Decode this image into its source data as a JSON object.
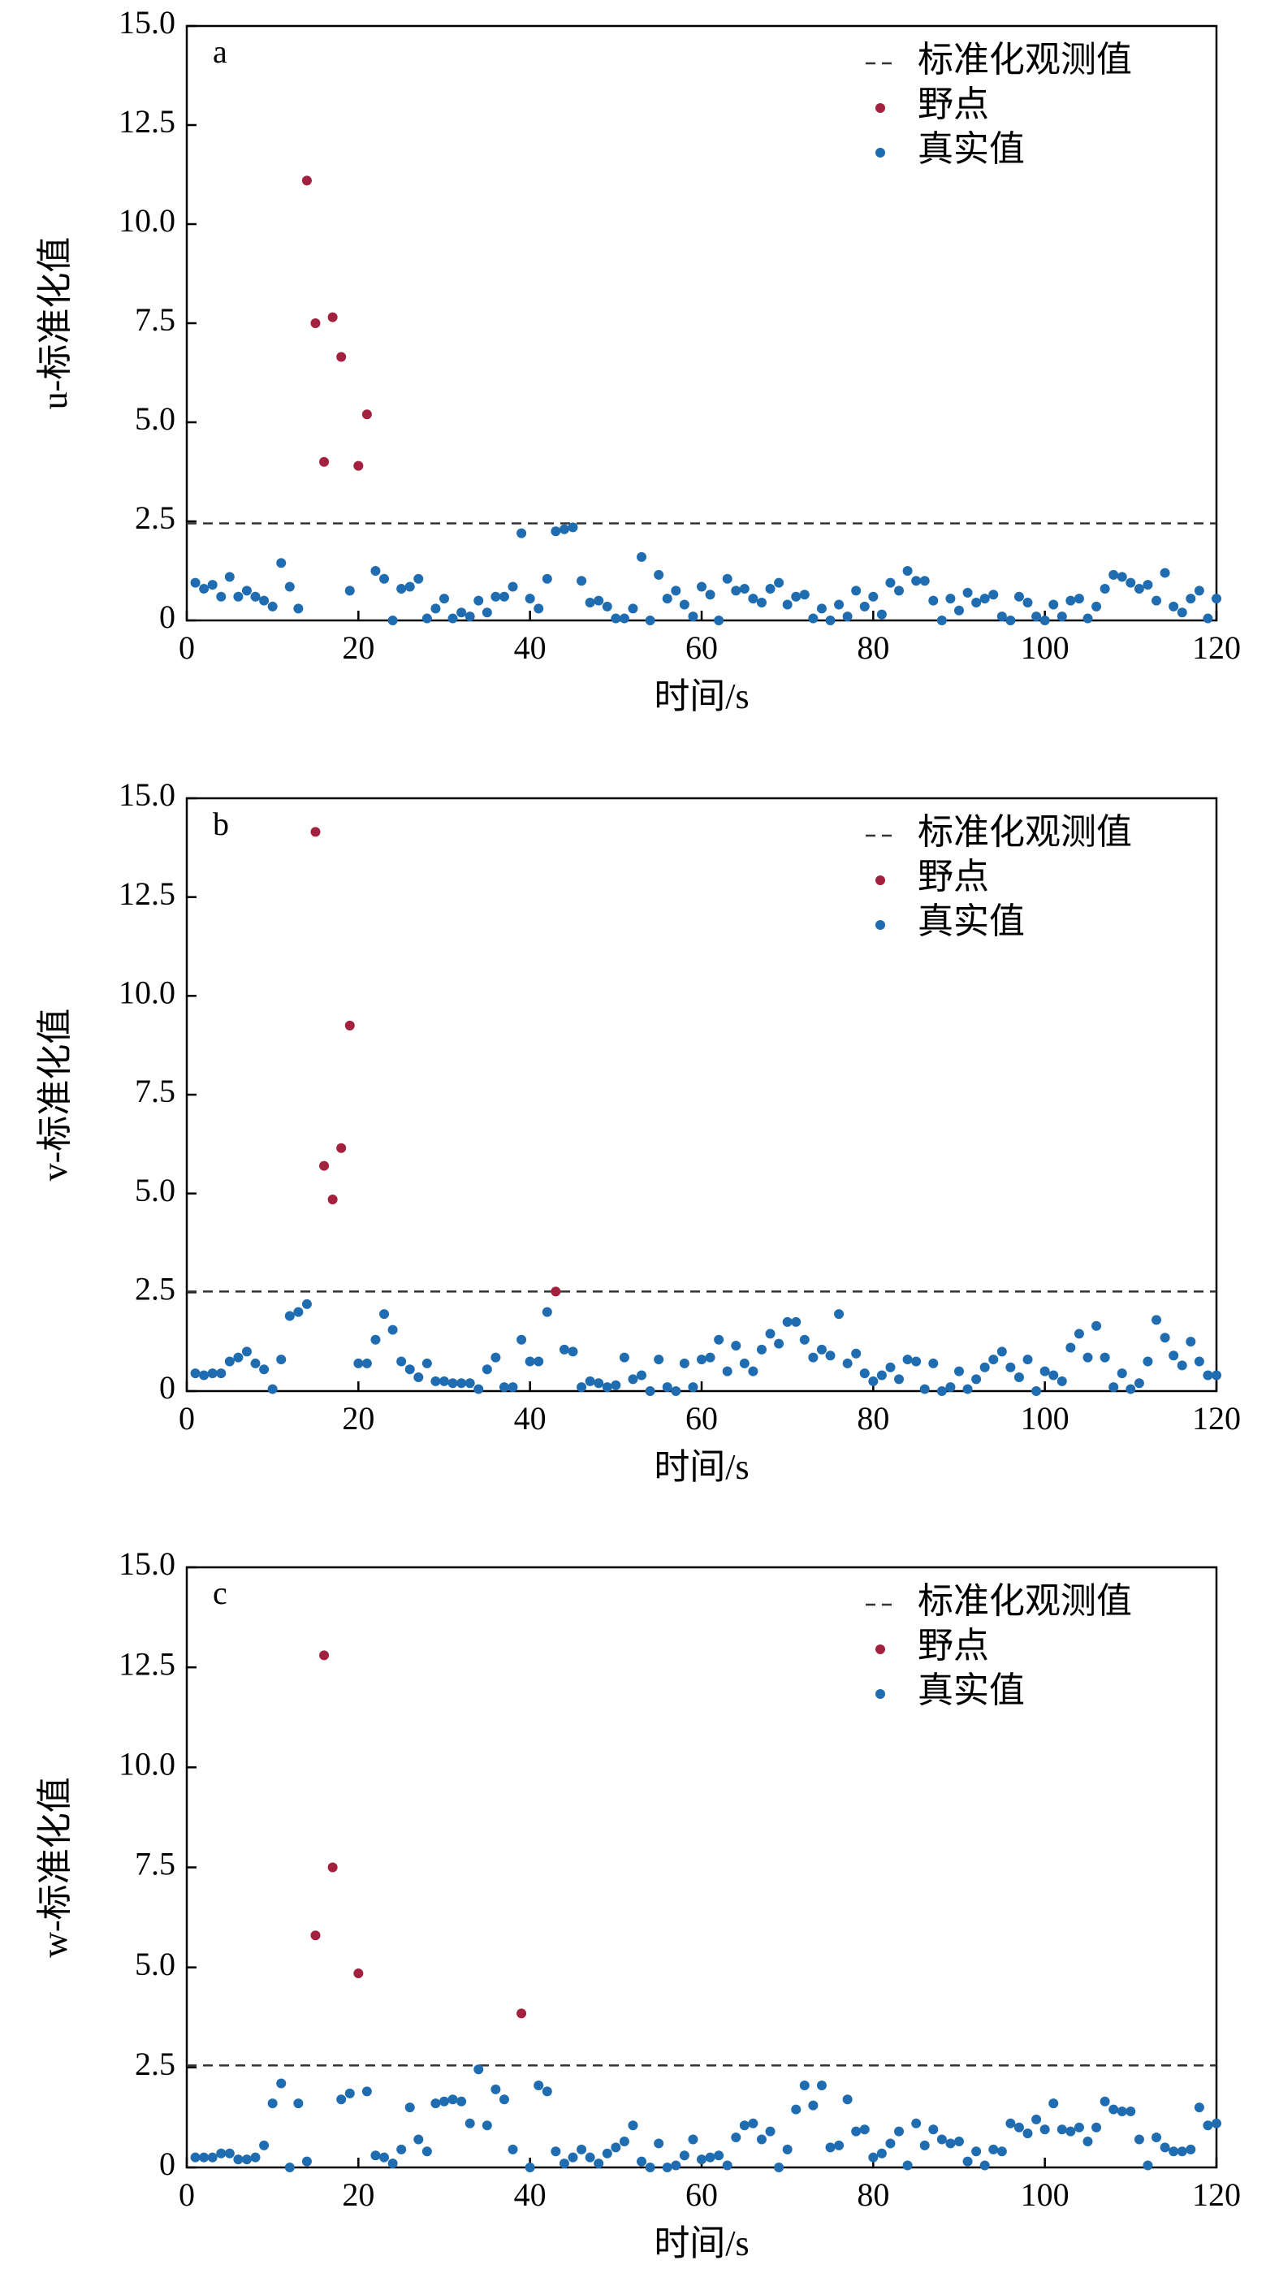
{
  "chart_data": [
    {
      "type": "scatter",
      "panel": "a",
      "ylabel": "u-标准化值",
      "xlabel": "时间/s",
      "xlim": [
        0,
        120
      ],
      "ylim": [
        0,
        15
      ],
      "xticks": [
        0,
        20,
        40,
        60,
        80,
        100,
        120
      ],
      "yticks": [
        0,
        {
          "value": 2.5,
          "label": "2.5"
        },
        {
          "value": 5,
          "label": "5.0"
        },
        {
          "value": 7.5,
          "label": "7.5"
        },
        {
          "value": 10,
          "label": "10.0"
        },
        {
          "value": 12.5,
          "label": "12.5"
        },
        {
          "value": 15,
          "label": "15.0"
        }
      ],
      "threshold": {
        "name": "标准化观测值",
        "value": 2.45,
        "color": "#333333"
      },
      "series": [
        {
          "name": "野点",
          "color": "#a3203f",
          "x": [
            14,
            15,
            16,
            17,
            18,
            20,
            21
          ],
          "values": [
            11.1,
            7.5,
            4.0,
            7.65,
            6.65,
            3.9,
            5.2
          ]
        },
        {
          "name": "真实值",
          "color": "#1f6db0",
          "x": [
            1,
            2,
            3,
            4,
            5,
            6,
            7,
            8,
            9,
            10,
            11,
            12,
            13,
            19,
            22,
            23,
            24,
            25,
            26,
            27,
            28,
            29,
            30,
            31,
            32,
            33,
            34,
            35,
            36,
            37,
            38,
            39,
            40,
            41,
            42,
            43,
            44,
            45,
            46,
            47,
            48,
            49,
            50,
            51,
            52,
            53,
            54,
            55,
            56,
            57,
            58,
            59,
            60,
            61,
            62,
            63,
            64,
            65,
            66,
            67,
            68,
            69,
            70,
            71,
            72,
            73,
            74,
            75,
            76,
            77,
            78,
            79,
            80,
            81,
            82,
            83,
            84,
            85,
            86,
            87,
            88,
            89,
            90,
            91,
            92,
            93,
            94,
            95,
            96,
            97,
            98,
            99,
            100,
            101,
            102,
            103,
            104,
            105,
            106,
            107,
            108,
            109,
            110,
            111,
            112,
            113,
            114,
            115,
            116,
            117,
            118,
            119,
            120
          ],
          "values": [
            0.95,
            0.8,
            0.9,
            0.6,
            1.1,
            0.6,
            0.75,
            0.6,
            0.5,
            0.35,
            1.45,
            0.85,
            0.3,
            0.75,
            1.25,
            1.05,
            0,
            0.8,
            0.85,
            1.05,
            0.05,
            0.3,
            0.55,
            0.05,
            0.2,
            0.1,
            0.5,
            0.2,
            0.6,
            0.6,
            0.85,
            2.2,
            0.55,
            0.3,
            1.05,
            2.25,
            2.3,
            2.35,
            1.0,
            0.45,
            0.5,
            0.35,
            0.05,
            0.05,
            0.3,
            1.6,
            0,
            1.15,
            0.55,
            0.75,
            0.4,
            0.1,
            0.85,
            0.65,
            0,
            1.05,
            0.75,
            0.8,
            0.55,
            0.45,
            0.8,
            0.95,
            0.4,
            0.6,
            0.65,
            0.05,
            0.3,
            0,
            0.4,
            0.1,
            0.75,
            0.35,
            0.6,
            0.15,
            0.95,
            0.75,
            1.25,
            1.0,
            1.0,
            0.5,
            0,
            0.55,
            0.25,
            0.7,
            0.45,
            0.55,
            0.65,
            0.1,
            0,
            0.6,
            0.45,
            0.1,
            0,
            0.4,
            0.1,
            0.5,
            0.55,
            0.05,
            0.35,
            0.8,
            1.15,
            1.1,
            0.95,
            0.8,
            0.9,
            0.5,
            1.2,
            0.35,
            0.2,
            0.55,
            0.75,
            0.05,
            0.55
          ]
        }
      ]
    },
    {
      "type": "scatter",
      "panel": "b",
      "ylabel": "v-标准化值",
      "xlabel": "时间/s",
      "xlim": [
        0,
        120
      ],
      "ylim": [
        0,
        15
      ],
      "xticks": [
        0,
        20,
        40,
        60,
        80,
        100,
        120
      ],
      "yticks": [
        0,
        {
          "value": 2.5,
          "label": "2.5"
        },
        {
          "value": 5,
          "label": "5.0"
        },
        {
          "value": 7.5,
          "label": "7.5"
        },
        {
          "value": 10,
          "label": "10.0"
        },
        {
          "value": 12.5,
          "label": "12.5"
        },
        {
          "value": 15,
          "label": "15.0"
        }
      ],
      "threshold": {
        "name": "标准化观测值",
        "value": 2.52,
        "color": "#333333"
      },
      "series": [
        {
          "name": "野点",
          "color": "#a3203f",
          "x": [
            15,
            16,
            17,
            18,
            19,
            43
          ],
          "values": [
            14.15,
            5.7,
            4.85,
            6.15,
            9.25,
            2.52
          ]
        },
        {
          "name": "真实值",
          "color": "#1f6db0",
          "x": [
            1,
            2,
            3,
            4,
            5,
            6,
            7,
            8,
            9,
            10,
            11,
            12,
            13,
            14,
            20,
            21,
            22,
            23,
            24,
            25,
            26,
            27,
            28,
            29,
            30,
            31,
            32,
            33,
            34,
            35,
            36,
            37,
            38,
            39,
            40,
            41,
            42,
            44,
            45,
            46,
            47,
            48,
            49,
            50,
            51,
            52,
            53,
            54,
            55,
            56,
            57,
            58,
            59,
            60,
            61,
            62,
            63,
            64,
            65,
            66,
            67,
            68,
            69,
            70,
            71,
            72,
            73,
            74,
            75,
            76,
            77,
            78,
            79,
            80,
            81,
            82,
            83,
            84,
            85,
            86,
            87,
            88,
            89,
            90,
            91,
            92,
            93,
            94,
            95,
            96,
            97,
            98,
            99,
            100,
            101,
            102,
            103,
            104,
            105,
            106,
            107,
            108,
            109,
            110,
            111,
            112,
            113,
            114,
            115,
            116,
            117,
            118,
            119,
            120
          ],
          "values": [
            0.45,
            0.4,
            0.45,
            0.45,
            0.75,
            0.85,
            1.0,
            0.7,
            0.55,
            0.05,
            0.8,
            1.9,
            2.0,
            2.2,
            0.7,
            0.7,
            1.3,
            1.95,
            1.55,
            0.75,
            0.55,
            0.35,
            0.7,
            0.25,
            0.25,
            0.2,
            0.2,
            0.2,
            0.05,
            0.55,
            0.85,
            0.1,
            0.1,
            1.3,
            0.75,
            0.75,
            2.0,
            1.05,
            1.0,
            0.1,
            0.25,
            0.2,
            0.1,
            0.15,
            0.85,
            0.3,
            0.4,
            0,
            0.8,
            0.1,
            0,
            0.7,
            0.1,
            0.8,
            0.85,
            1.3,
            0.5,
            1.15,
            0.7,
            0.5,
            1.05,
            1.45,
            1.2,
            1.75,
            1.75,
            1.3,
            0.85,
            1.05,
            0.9,
            1.95,
            0.7,
            0.95,
            0.45,
            0.25,
            0.4,
            0.6,
            0.3,
            0.8,
            0.75,
            0.05,
            0.7,
            0,
            0.1,
            0.5,
            0.05,
            0.3,
            0.6,
            0.8,
            1.0,
            0.6,
            0.35,
            0.8,
            0,
            0.5,
            0.4,
            0.25,
            1.1,
            1.45,
            0.85,
            1.65,
            0.85,
            0.1,
            0.45,
            0.05,
            0.2,
            0.75,
            1.8,
            1.35,
            0.9,
            0.65,
            1.25,
            0.75,
            0.4,
            0.4
          ]
        }
      ]
    },
    {
      "type": "scatter",
      "panel": "c",
      "ylabel": "w-标准化值",
      "xlabel": "时间/s",
      "xlim": [
        0,
        120
      ],
      "ylim": [
        0,
        15
      ],
      "xticks": [
        0,
        20,
        40,
        60,
        80,
        100,
        120
      ],
      "yticks": [
        0,
        {
          "value": 2.5,
          "label": "2.5"
        },
        {
          "value": 5,
          "label": "5.0"
        },
        {
          "value": 7.5,
          "label": "7.5"
        },
        {
          "value": 10,
          "label": "10.0"
        },
        {
          "value": 12.5,
          "label": "12.5"
        },
        {
          "value": 15,
          "label": "15.0"
        }
      ],
      "threshold": {
        "name": "标准化观测值",
        "value": 2.55,
        "color": "#333333"
      },
      "series": [
        {
          "name": "野点",
          "color": "#a3203f",
          "x": [
            15,
            16,
            17,
            20,
            39
          ],
          "values": [
            5.8,
            12.8,
            7.5,
            4.85,
            3.85
          ]
        },
        {
          "name": "真实值",
          "color": "#1f6db0",
          "x": [
            1,
            2,
            3,
            4,
            5,
            6,
            7,
            8,
            9,
            10,
            11,
            12,
            13,
            14,
            18,
            19,
            21,
            22,
            23,
            24,
            25,
            26,
            27,
            28,
            29,
            30,
            31,
            32,
            33,
            34,
            35,
            36,
            37,
            38,
            40,
            41,
            42,
            43,
            44,
            45,
            46,
            47,
            48,
            49,
            50,
            51,
            52,
            53,
            54,
            55,
            56,
            57,
            58,
            59,
            60,
            61,
            62,
            63,
            64,
            65,
            66,
            67,
            68,
            69,
            70,
            71,
            72,
            73,
            74,
            75,
            76,
            77,
            78,
            79,
            80,
            81,
            82,
            83,
            84,
            85,
            86,
            87,
            88,
            89,
            90,
            91,
            92,
            93,
            94,
            95,
            96,
            97,
            98,
            99,
            100,
            101,
            102,
            103,
            104,
            105,
            106,
            107,
            108,
            109,
            110,
            111,
            112,
            113,
            114,
            115,
            116,
            117,
            118,
            119,
            120
          ],
          "values": [
            0.25,
            0.25,
            0.25,
            0.35,
            0.35,
            0.2,
            0.2,
            0.25,
            0.55,
            1.6,
            2.1,
            0,
            1.6,
            0.15,
            1.7,
            1.85,
            1.9,
            0.3,
            0.25,
            0.1,
            0.45,
            1.5,
            0.7,
            0.4,
            1.6,
            1.65,
            1.7,
            1.65,
            1.1,
            2.45,
            1.05,
            1.95,
            1.7,
            0.45,
            0,
            2.05,
            1.9,
            0.4,
            0.1,
            0.25,
            0.45,
            0.25,
            0.1,
            0.35,
            0.5,
            0.65,
            1.05,
            0.15,
            0,
            0.6,
            0,
            0.05,
            0.3,
            0.7,
            0.2,
            0.25,
            0.3,
            0.05,
            0.75,
            1.05,
            1.1,
            0.7,
            0.9,
            0,
            0.45,
            1.45,
            2.05,
            1.55,
            2.05,
            0.5,
            0.55,
            1.7,
            0.9,
            0.95,
            0.25,
            0.35,
            0.6,
            0.9,
            0.05,
            1.1,
            0.55,
            0.95,
            0.7,
            0.6,
            0.65,
            0.15,
            0.4,
            0.05,
            0.45,
            0.4,
            1.1,
            1.0,
            0.85,
            1.2,
            0.95,
            1.6,
            0.95,
            0.9,
            1.0,
            0.65,
            1.0,
            1.65,
            1.45,
            1.4,
            1.4,
            0.7,
            0.05,
            0.75,
            0.5,
            0.4,
            0.4,
            0.45,
            1.5,
            1.05,
            1.1
          ]
        }
      ]
    }
  ]
}
